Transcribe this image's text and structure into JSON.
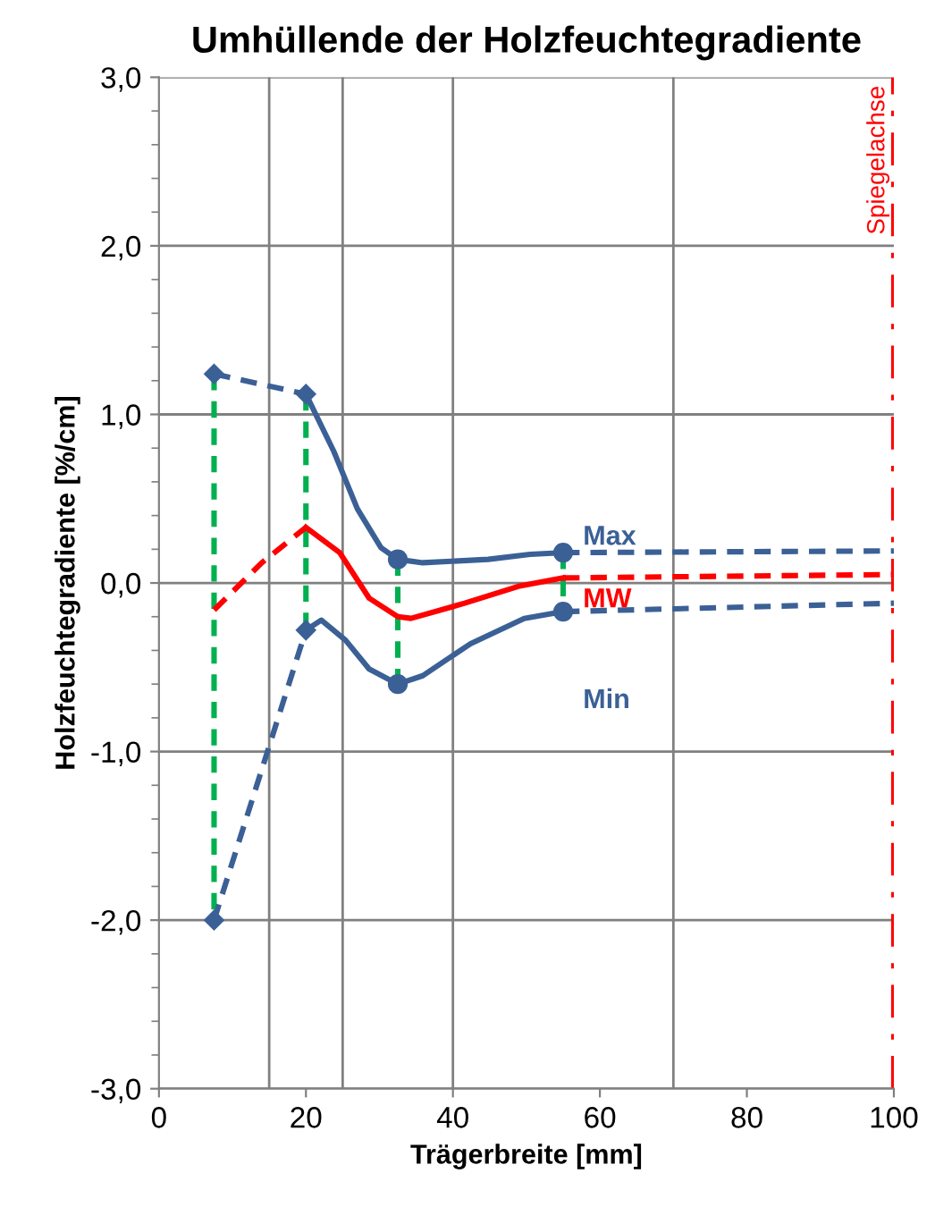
{
  "chart_data": {
    "type": "line",
    "title": "Umhüllende der Holzfeuchtegradiente",
    "xlabel": "Trägerbreite [mm]",
    "ylabel": "Holzfeuchtegradiente [%/cm]",
    "xlim": [
      0,
      100
    ],
    "xticks": [
      0,
      20,
      40,
      60,
      80,
      100
    ],
    "ylim": [
      -3,
      3
    ],
    "yticks": [
      {
        "value": -3,
        "label": "-3,0"
      },
      {
        "value": -2,
        "label": "-2,0"
      },
      {
        "value": -1,
        "label": "-1,0"
      },
      {
        "value": 0,
        "label": "0,0"
      },
      {
        "value": 1,
        "label": "1,0"
      },
      {
        "value": 2,
        "label": "2,0"
      },
      {
        "value": 3,
        "label": "3,0"
      }
    ],
    "grid": "y",
    "legend": false,
    "ref_lines": [
      {
        "axis": "x",
        "value": 15,
        "color": "#808080"
      },
      {
        "axis": "x",
        "value": 25,
        "color": "#808080"
      },
      {
        "axis": "x",
        "value": 40,
        "color": "#808080"
      },
      {
        "axis": "x",
        "value": 70,
        "color": "#808080"
      },
      {
        "axis": "x",
        "value": 100,
        "label": "Spiegelachse",
        "color": "#ff0000",
        "line_style": "dashed"
      }
    ],
    "series": [
      {
        "color": "#00b050",
        "line_style": "dashed",
        "marker": "none",
        "x": [
          7.5,
          7.5
        ],
        "values": [
          1.24,
          -2.0
        ]
      },
      {
        "color": "#00b050",
        "line_style": "dashed",
        "marker": "none",
        "x": [
          20,
          20
        ],
        "values": [
          1.12,
          -0.28
        ]
      },
      {
        "color": "#00b050",
        "line_style": "dashed",
        "marker": "none",
        "x": [
          32.5,
          32.5
        ],
        "values": [
          0.14,
          -0.6
        ]
      },
      {
        "color": "#00b050",
        "line_style": "dashed",
        "marker": "none",
        "x": [
          55,
          55
        ],
        "values": [
          0.18,
          -0.17
        ]
      },
      {
        "color": "#3b6096",
        "line_style": "dashed",
        "marker": "diamond",
        "x": [
          7.5,
          20
        ],
        "values": [
          1.24,
          1.12
        ]
      },
      {
        "name": "Max",
        "color": "#3b6096",
        "line_style": "solid",
        "marker": "none",
        "x": [
          20,
          23.8,
          27,
          30.2,
          32.5,
          35.9,
          44.8,
          50.5,
          55
        ],
        "values": [
          1.12,
          0.78,
          0.44,
          0.21,
          0.14,
          0.12,
          0.14,
          0.17,
          0.18
        ]
      },
      {
        "color": "#3b6096",
        "line_style": "dashed",
        "marker": "none",
        "x": [
          55,
          100
        ],
        "values": [
          0.18,
          0.19
        ]
      },
      {
        "color": "#ff0000",
        "line_style": "dashed",
        "marker": "none",
        "x": [
          7.5,
          14,
          20
        ],
        "values": [
          -0.16,
          0.12,
          0.33
        ]
      },
      {
        "name": "MW",
        "color": "#ff0000",
        "line_style": "solid",
        "marker": "none",
        "x": [
          20,
          24.6,
          28.6,
          32.5,
          34.3,
          41.6,
          48.9,
          55
        ],
        "values": [
          0.33,
          0.18,
          -0.09,
          -0.2,
          -0.21,
          -0.12,
          -0.02,
          0.03
        ]
      },
      {
        "color": "#ff0000",
        "line_style": "dashed",
        "marker": "none",
        "x": [
          55,
          100
        ],
        "values": [
          0.03,
          0.05
        ]
      },
      {
        "color": "#3b6096",
        "line_style": "dashed",
        "marker": "diamond",
        "x": [
          7.5,
          20
        ],
        "values": [
          -2.0,
          -0.28
        ]
      },
      {
        "name": "Min",
        "color": "#3b6096",
        "line_style": "solid",
        "marker": "none",
        "x": [
          20,
          22.1,
          25.4,
          28.6,
          32.5,
          35.9,
          42.4,
          49.7,
          55
        ],
        "values": [
          -0.28,
          -0.22,
          -0.34,
          -0.51,
          -0.6,
          -0.55,
          -0.36,
          -0.21,
          -0.17
        ]
      },
      {
        "color": "#3b6096",
        "line_style": "dashed",
        "marker": "none",
        "x": [
          55,
          100
        ],
        "values": [
          -0.17,
          -0.12
        ]
      },
      {
        "type": "scatter",
        "color": "#3b6096",
        "marker": "circle",
        "x": [
          32.5,
          55,
          32.5,
          55
        ],
        "values": [
          0.14,
          0.18,
          -0.6,
          -0.17
        ]
      }
    ]
  }
}
